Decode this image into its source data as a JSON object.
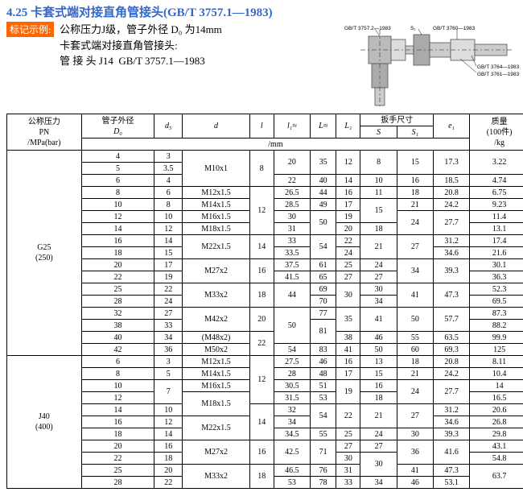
{
  "title": "4.25 卡套式端对接直角管接头(GB/T 3757.1—1983)",
  "badge": "标记示例:",
  "example": {
    "l1": "公称压力J级，管子外径 D₀ 为14mm",
    "l2": "卡套式端对接直角管接头:",
    "l3": "管 接 头 J14  GB/T 3757.1—1983"
  },
  "diagram_labels": {
    "top1": "GB/T 3757.2—1983",
    "top2": "S₁",
    "top3": "GB/T 3760—1983",
    "r1": "GB/T 3764—1983",
    "r2": "GB/T 3761—1983"
  },
  "headers": {
    "c1a": "公称压力",
    "c1b": "PN",
    "c1c": "/MPa(bar)",
    "c2a": "管子外径",
    "c2b": "D₀",
    "c3": "d₅",
    "c4": "d",
    "c5": "l",
    "c6": "l₁≈",
    "c7": "L≈",
    "c8": "L₁",
    "c9": "扳手尺寸",
    "c9a": "S",
    "c9b": "S₁",
    "c10": "e₁",
    "c11a": "质量",
    "c11b": "(100件)",
    "c11c": "/kg",
    "mm": "/mm"
  },
  "groups": [
    {
      "pn": "G25\n(250)",
      "rows": [
        [
          "4",
          "3",
          "M10x1",
          "8",
          "20",
          "35",
          "12",
          "8",
          "15",
          "17.3",
          "3.22"
        ],
        [
          "5",
          "3.5",
          "",
          "",
          "",
          "",
          "",
          "",
          "",
          "",
          ""
        ],
        [
          "6",
          "4",
          "",
          "",
          "22",
          "40",
          "14",
          "10",
          "16",
          "18.5",
          "4.74"
        ],
        [
          "8",
          "6",
          "M12x1.5",
          "12",
          "26.5",
          "44",
          "16",
          "11",
          "18",
          "20.8",
          "6.75"
        ],
        [
          "10",
          "8",
          "M14x1.5",
          "",
          "28.5",
          "49",
          "17",
          "15",
          "21",
          "24.2",
          "9.23"
        ],
        [
          "12",
          "10",
          "M16x1.5",
          "",
          "30",
          "50",
          "19",
          "",
          "24",
          "27.7",
          "11.4"
        ],
        [
          "14",
          "12",
          "M18x1.5",
          "",
          "31",
          "",
          "20",
          "18",
          "",
          "",
          "13.1"
        ],
        [
          "16",
          "14",
          "M22x1.5",
          "14",
          "33",
          "54",
          "22",
          "21",
          "27",
          "31.2",
          "17.4"
        ],
        [
          "18",
          "15",
          "",
          "",
          "33.5",
          "",
          "24",
          "",
          "",
          "34.6",
          "21.6"
        ],
        [
          "20",
          "17",
          "M27x2",
          "16",
          "37.5",
          "61",
          "25",
          "24",
          "34",
          "39.3",
          "30.1"
        ],
        [
          "22",
          "19",
          "",
          "",
          "41.5",
          "65",
          "27",
          "27",
          "",
          "",
          "36.3"
        ],
        [
          "25",
          "22",
          "M33x2",
          "18",
          "44",
          "69",
          "30",
          "30",
          "41",
          "47.3",
          "52.3"
        ],
        [
          "28",
          "24",
          "",
          "",
          "",
          "70",
          "",
          "34",
          "",
          "",
          "69.5"
        ],
        [
          "32",
          "27",
          "M42x2",
          "20",
          "50",
          "77",
          "35",
          "41",
          "50",
          "57.7",
          "87.3"
        ],
        [
          "38",
          "33",
          "",
          "",
          "",
          "81",
          "",
          "",
          "",
          "",
          "88.2"
        ],
        [
          "40",
          "34",
          "(M48x2)",
          "22",
          "",
          "",
          "38",
          "46",
          "55",
          "63.5",
          "99.9"
        ],
        [
          "42",
          "36",
          "M50x2",
          "",
          "54",
          "83",
          "41",
          "50",
          "60",
          "69.3",
          "125 "
        ]
      ]
    },
    {
      "pn": "J40\n(400)",
      "rows": [
        [
          "6",
          "3",
          "M12x1.5",
          "12",
          "27.5",
          "46",
          "16",
          "13",
          "18",
          "20.8",
          "8.11"
        ],
        [
          "8",
          "5",
          "M14x1.5",
          "",
          "28",
          "48",
          "17",
          "15",
          "21",
          "24.2",
          "10.4"
        ],
        [
          "10",
          "7",
          "M16x1.5",
          "",
          "30.5",
          "51",
          "19",
          "16",
          "24",
          "27.7",
          "14"
        ],
        [
          "12",
          "",
          "M18x1.5",
          "",
          "31.5",
          "53",
          "",
          "18",
          "",
          "",
          "16.5"
        ],
        [
          "14",
          "10",
          "",
          "14",
          "32",
          "54",
          "22",
          "21",
          "27",
          "31.2",
          "20.6"
        ],
        [
          "16",
          "12",
          "M22x1.5",
          "",
          "34",
          "",
          "",
          "",
          "",
          "34.6",
          "26.8"
        ],
        [
          "18",
          "14",
          "",
          "",
          "34.5",
          "55",
          "25",
          "24",
          "30",
          "39.3",
          "29.8"
        ],
        [
          "20",
          "16",
          "M27x2",
          "16",
          "42.5",
          "71",
          "27",
          "27",
          "36",
          "41.6",
          "43.1"
        ],
        [
          "22",
          "18",
          "",
          "",
          "",
          "",
          "30",
          "30",
          "",
          "",
          "54.8"
        ],
        [
          "25",
          "20",
          "M33x2",
          "18",
          "46.5",
          "76",
          "31",
          "",
          "41",
          "47.3",
          "63.7"
        ],
        [
          "28",
          "22",
          "",
          "",
          "53",
          "78",
          "33",
          "34",
          "46",
          "53.1",
          ""
        ]
      ]
    }
  ]
}
